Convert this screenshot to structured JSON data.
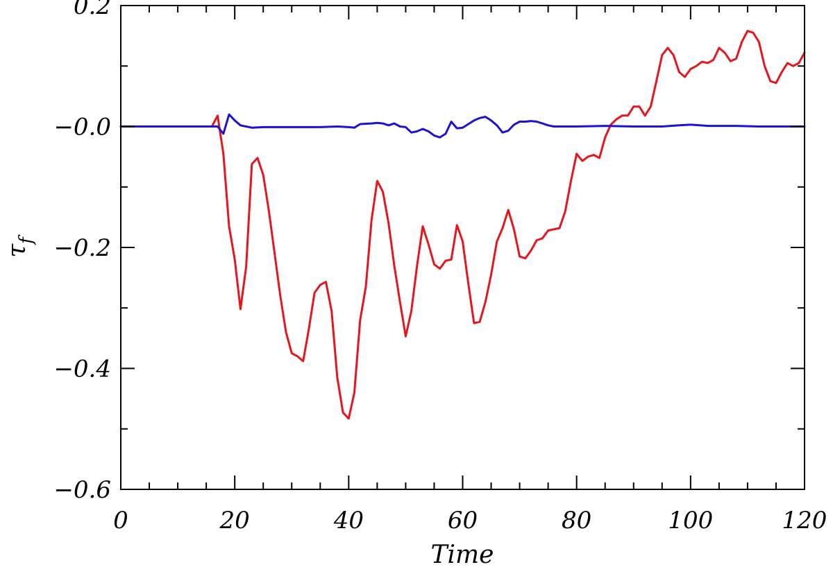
{
  "chart_data": {
    "type": "line",
    "title": "",
    "xlabel": "Time",
    "ylabel": "τ",
    "ylabel_subscript": "f",
    "xlim": [
      0,
      120
    ],
    "ylim": [
      -0.6,
      0.2
    ],
    "xticks": [
      0,
      20,
      40,
      60,
      80,
      100,
      120
    ],
    "xtick_labels": [
      "0",
      "20",
      "40",
      "60",
      "80",
      "100",
      "120"
    ],
    "x_minor_step": 5,
    "yticks": [
      -0.6,
      -0.4,
      -0.2,
      0.0,
      0.2
    ],
    "ytick_labels": [
      "−0.6",
      "−0.4",
      "−0.2",
      "−0.0",
      "0.2"
    ],
    "y_minor_step": 0.1,
    "grid": false,
    "legend": "none",
    "series": [
      {
        "color": "#e8141b",
        "points": [
          [
            0,
            0.0
          ],
          [
            16,
            0.0
          ],
          [
            17,
            0.018
          ],
          [
            18,
            -0.045
          ],
          [
            19,
            -0.165
          ],
          [
            20,
            -0.22
          ],
          [
            21,
            -0.302
          ],
          [
            22,
            -0.232
          ],
          [
            23,
            -0.062
          ],
          [
            24,
            -0.052
          ],
          [
            25,
            -0.08
          ],
          [
            26,
            -0.14
          ],
          [
            27,
            -0.21
          ],
          [
            28,
            -0.28
          ],
          [
            29,
            -0.34
          ],
          [
            30,
            -0.375
          ],
          [
            31,
            -0.38
          ],
          [
            32,
            -0.388
          ],
          [
            33,
            -0.335
          ],
          [
            34,
            -0.275
          ],
          [
            35,
            -0.262
          ],
          [
            36,
            -0.257
          ],
          [
            37,
            -0.305
          ],
          [
            38,
            -0.415
          ],
          [
            39,
            -0.473
          ],
          [
            40,
            -0.483
          ],
          [
            41,
            -0.44
          ],
          [
            42,
            -0.32
          ],
          [
            43,
            -0.265
          ],
          [
            44,
            -0.155
          ],
          [
            45,
            -0.09
          ],
          [
            46,
            -0.108
          ],
          [
            47,
            -0.16
          ],
          [
            48,
            -0.23
          ],
          [
            49,
            -0.29
          ],
          [
            50,
            -0.347
          ],
          [
            51,
            -0.305
          ],
          [
            52,
            -0.23
          ],
          [
            53,
            -0.165
          ],
          [
            54,
            -0.195
          ],
          [
            55,
            -0.228
          ],
          [
            56,
            -0.235
          ],
          [
            57,
            -0.222
          ],
          [
            58,
            -0.22
          ],
          [
            59,
            -0.163
          ],
          [
            60,
            -0.19
          ],
          [
            61,
            -0.26
          ],
          [
            62,
            -0.325
          ],
          [
            63,
            -0.323
          ],
          [
            64,
            -0.29
          ],
          [
            65,
            -0.245
          ],
          [
            66,
            -0.19
          ],
          [
            67,
            -0.168
          ],
          [
            68,
            -0.138
          ],
          [
            69,
            -0.17
          ],
          [
            70,
            -0.215
          ],
          [
            71,
            -0.218
          ],
          [
            72,
            -0.205
          ],
          [
            73,
            -0.188
          ],
          [
            74,
            -0.185
          ],
          [
            75,
            -0.172
          ],
          [
            76,
            -0.17
          ],
          [
            77,
            -0.168
          ],
          [
            78,
            -0.14
          ],
          [
            79,
            -0.09
          ],
          [
            80,
            -0.045
          ],
          [
            81,
            -0.057
          ],
          [
            82,
            -0.05
          ],
          [
            83,
            -0.047
          ],
          [
            84,
            -0.052
          ],
          [
            85,
            -0.018
          ],
          [
            86,
            0.003
          ],
          [
            87,
            0.012
          ],
          [
            88,
            0.018
          ],
          [
            89,
            0.018
          ],
          [
            90,
            0.033
          ],
          [
            91,
            0.033
          ],
          [
            92,
            0.018
          ],
          [
            93,
            0.033
          ],
          [
            94,
            0.075
          ],
          [
            95,
            0.118
          ],
          [
            96,
            0.13
          ],
          [
            97,
            0.118
          ],
          [
            98,
            0.09
          ],
          [
            99,
            0.082
          ],
          [
            100,
            0.095
          ],
          [
            101,
            0.1
          ],
          [
            102,
            0.107
          ],
          [
            103,
            0.105
          ],
          [
            104,
            0.11
          ],
          [
            105,
            0.13
          ],
          [
            106,
            0.122
          ],
          [
            107,
            0.108
          ],
          [
            108,
            0.112
          ],
          [
            109,
            0.14
          ],
          [
            110,
            0.158
          ],
          [
            111,
            0.155
          ],
          [
            112,
            0.14
          ],
          [
            113,
            0.1
          ],
          [
            114,
            0.075
          ],
          [
            115,
            0.072
          ],
          [
            116,
            0.09
          ],
          [
            117,
            0.105
          ],
          [
            118,
            0.1
          ],
          [
            119,
            0.105
          ],
          [
            120,
            0.122
          ]
        ]
      },
      {
        "color": "#1b12d8",
        "points": [
          [
            0,
            0.0
          ],
          [
            16,
            0.0
          ],
          [
            17,
            0.0
          ],
          [
            18,
            -0.012
          ],
          [
            19,
            0.02
          ],
          [
            20,
            0.01
          ],
          [
            21,
            0.002
          ],
          [
            22,
            0.0
          ],
          [
            23,
            -0.002
          ],
          [
            25,
            -0.001
          ],
          [
            30,
            -0.001
          ],
          [
            35,
            -0.001
          ],
          [
            38,
            0.0
          ],
          [
            40,
            -0.001
          ],
          [
            41,
            -0.002
          ],
          [
            42,
            0.004
          ],
          [
            44,
            0.005
          ],
          [
            45,
            0.006
          ],
          [
            46,
            0.005
          ],
          [
            47,
            0.002
          ],
          [
            48,
            0.005
          ],
          [
            49,
            0.0
          ],
          [
            50,
            -0.001
          ],
          [
            51,
            -0.01
          ],
          [
            52,
            -0.008
          ],
          [
            53,
            -0.004
          ],
          [
            54,
            -0.008
          ],
          [
            55,
            -0.015
          ],
          [
            56,
            -0.018
          ],
          [
            57,
            -0.012
          ],
          [
            58,
            0.008
          ],
          [
            59,
            -0.003
          ],
          [
            60,
            -0.002
          ],
          [
            61,
            0.004
          ],
          [
            62,
            0.01
          ],
          [
            63,
            0.014
          ],
          [
            64,
            0.016
          ],
          [
            65,
            0.01
          ],
          [
            66,
            0.002
          ],
          [
            67,
            -0.01
          ],
          [
            68,
            -0.007
          ],
          [
            69,
            0.003
          ],
          [
            70,
            0.008
          ],
          [
            71,
            0.008
          ],
          [
            72,
            0.009
          ],
          [
            73,
            0.008
          ],
          [
            74,
            0.005
          ],
          [
            75,
            0.002
          ],
          [
            76,
            0.0
          ],
          [
            78,
            0.0
          ],
          [
            80,
            0.0
          ],
          [
            85,
            0.001
          ],
          [
            90,
            0.0
          ],
          [
            95,
            0.0
          ],
          [
            98,
            0.002
          ],
          [
            100,
            0.003
          ],
          [
            103,
            0.001
          ],
          [
            108,
            0.001
          ],
          [
            112,
            0.0
          ],
          [
            120,
            0.0
          ]
        ]
      }
    ]
  }
}
